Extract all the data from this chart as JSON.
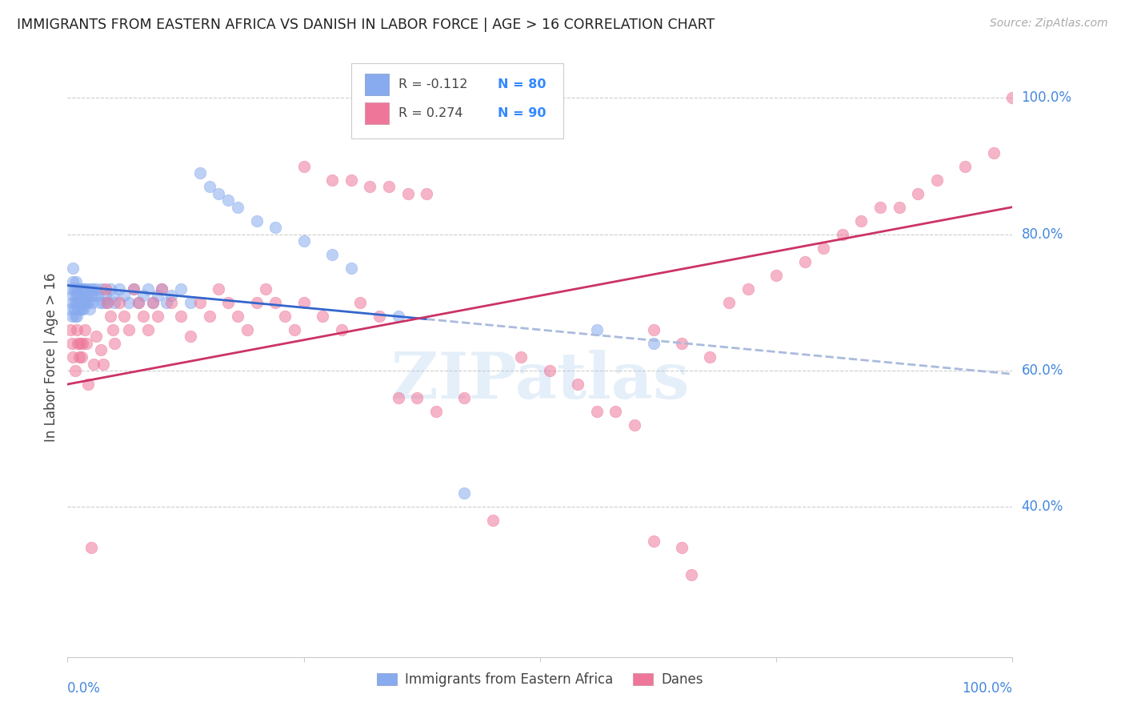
{
  "title": "IMMIGRANTS FROM EASTERN AFRICA VS DANISH IN LABOR FORCE | AGE > 16 CORRELATION CHART",
  "source": "Source: ZipAtlas.com",
  "ylabel": "In Labor Force | Age > 16",
  "xlim": [
    0.0,
    1.0
  ],
  "ylim": [
    0.18,
    1.06
  ],
  "blue_color": "#88AAEE",
  "pink_color": "#EE7799",
  "blue_line_color": "#3366CC",
  "pink_line_color": "#CC3366",
  "blue_dashed_color": "#AABBDD",
  "legend_R_blue": "R = -0.112",
  "legend_N_blue": "N = 80",
  "legend_R_pink": "R = 0.274",
  "legend_N_pink": "N = 90",
  "watermark": "ZIPatlas",
  "blue_x": [
    0.003,
    0.004,
    0.005,
    0.005,
    0.006,
    0.006,
    0.006,
    0.007,
    0.007,
    0.008,
    0.008,
    0.009,
    0.009,
    0.01,
    0.01,
    0.01,
    0.011,
    0.011,
    0.012,
    0.012,
    0.013,
    0.013,
    0.014,
    0.014,
    0.015,
    0.015,
    0.016,
    0.016,
    0.017,
    0.018,
    0.018,
    0.019,
    0.02,
    0.02,
    0.021,
    0.022,
    0.023,
    0.024,
    0.025,
    0.026,
    0.027,
    0.028,
    0.03,
    0.032,
    0.034,
    0.036,
    0.038,
    0.04,
    0.042,
    0.045,
    0.048,
    0.05,
    0.055,
    0.06,
    0.065,
    0.07,
    0.075,
    0.08,
    0.085,
    0.09,
    0.095,
    0.1,
    0.105,
    0.11,
    0.12,
    0.13,
    0.14,
    0.15,
    0.16,
    0.17,
    0.18,
    0.2,
    0.22,
    0.25,
    0.28,
    0.3,
    0.35,
    0.42,
    0.56,
    0.62
  ],
  "blue_y": [
    0.69,
    0.72,
    0.7,
    0.68,
    0.71,
    0.73,
    0.75,
    0.69,
    0.72,
    0.7,
    0.68,
    0.71,
    0.73,
    0.7,
    0.72,
    0.68,
    0.69,
    0.71,
    0.72,
    0.7,
    0.69,
    0.71,
    0.72,
    0.7,
    0.69,
    0.71,
    0.72,
    0.7,
    0.69,
    0.7,
    0.72,
    0.71,
    0.7,
    0.72,
    0.71,
    0.7,
    0.69,
    0.72,
    0.71,
    0.7,
    0.72,
    0.71,
    0.72,
    0.71,
    0.7,
    0.72,
    0.7,
    0.71,
    0.7,
    0.72,
    0.71,
    0.7,
    0.72,
    0.71,
    0.7,
    0.72,
    0.7,
    0.71,
    0.72,
    0.7,
    0.71,
    0.72,
    0.7,
    0.71,
    0.72,
    0.7,
    0.89,
    0.87,
    0.86,
    0.85,
    0.84,
    0.82,
    0.81,
    0.79,
    0.77,
    0.75,
    0.68,
    0.42,
    0.66,
    0.64
  ],
  "pink_x": [
    0.003,
    0.005,
    0.006,
    0.008,
    0.01,
    0.011,
    0.012,
    0.013,
    0.015,
    0.016,
    0.018,
    0.02,
    0.022,
    0.025,
    0.028,
    0.03,
    0.035,
    0.038,
    0.04,
    0.042,
    0.045,
    0.048,
    0.05,
    0.055,
    0.06,
    0.065,
    0.07,
    0.075,
    0.08,
    0.085,
    0.09,
    0.095,
    0.1,
    0.11,
    0.12,
    0.13,
    0.14,
    0.15,
    0.16,
    0.17,
    0.18,
    0.19,
    0.2,
    0.21,
    0.22,
    0.23,
    0.24,
    0.25,
    0.27,
    0.29,
    0.31,
    0.33,
    0.35,
    0.37,
    0.39,
    0.42,
    0.45,
    0.48,
    0.51,
    0.54,
    0.56,
    0.58,
    0.6,
    0.62,
    0.65,
    0.68,
    0.7,
    0.72,
    0.75,
    0.78,
    0.8,
    0.82,
    0.84,
    0.86,
    0.88,
    0.9,
    0.92,
    0.95,
    0.98,
    0.62,
    0.65,
    0.66,
    0.25,
    0.28,
    0.3,
    0.32,
    0.34,
    0.36,
    0.38,
    1.0
  ],
  "pink_y": [
    0.66,
    0.64,
    0.62,
    0.6,
    0.66,
    0.64,
    0.62,
    0.64,
    0.62,
    0.64,
    0.66,
    0.64,
    0.58,
    0.34,
    0.61,
    0.65,
    0.63,
    0.61,
    0.72,
    0.7,
    0.68,
    0.66,
    0.64,
    0.7,
    0.68,
    0.66,
    0.72,
    0.7,
    0.68,
    0.66,
    0.7,
    0.68,
    0.72,
    0.7,
    0.68,
    0.65,
    0.7,
    0.68,
    0.72,
    0.7,
    0.68,
    0.66,
    0.7,
    0.72,
    0.7,
    0.68,
    0.66,
    0.7,
    0.68,
    0.66,
    0.7,
    0.68,
    0.56,
    0.56,
    0.54,
    0.56,
    0.38,
    0.62,
    0.6,
    0.58,
    0.54,
    0.54,
    0.52,
    0.66,
    0.64,
    0.62,
    0.7,
    0.72,
    0.74,
    0.76,
    0.78,
    0.8,
    0.82,
    0.84,
    0.84,
    0.86,
    0.88,
    0.9,
    0.92,
    0.35,
    0.34,
    0.3,
    0.9,
    0.88,
    0.88,
    0.87,
    0.87,
    0.86,
    0.86,
    1.0
  ]
}
